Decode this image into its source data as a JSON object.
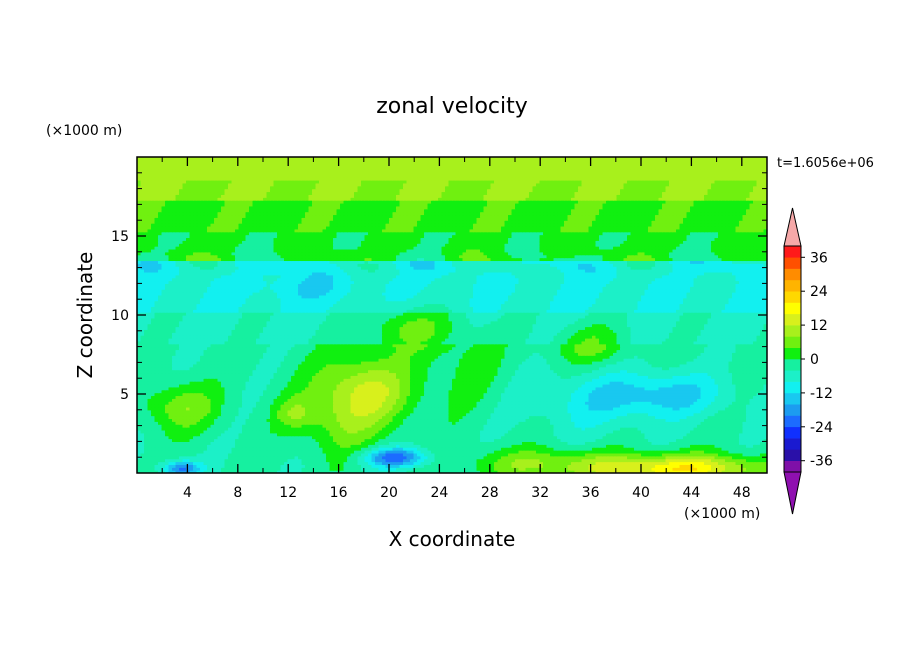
{
  "chart_data": {
    "type": "heatmap",
    "title": "zonal velocity",
    "xlabel": "X coordinate",
    "ylabel": "Z coordinate",
    "x_unit": "(×1000 m)",
    "y_unit": "(×1000 m)",
    "time_label": "t=1.6056e+06",
    "xlim": [
      0,
      50
    ],
    "ylim": [
      0,
      20
    ],
    "x_ticks": [
      4,
      8,
      12,
      16,
      20,
      24,
      28,
      32,
      36,
      40,
      44,
      48
    ],
    "y_ticks": [
      5,
      10,
      15
    ],
    "colorbar": {
      "levels": [
        -40,
        -36,
        -32,
        -28,
        -24,
        -20,
        -16,
        -12,
        -8,
        -4,
        0,
        4,
        8,
        12,
        16,
        20,
        24,
        28,
        32,
        36,
        40
      ],
      "tick_labels": [
        "36",
        "24",
        "12",
        "0",
        "-12",
        "-24",
        "-36"
      ],
      "colors": [
        "#7f10a8",
        "#2a10a8",
        "#1a1ad0",
        "#1030ff",
        "#1c6cff",
        "#1c9cf0",
        "#19c8f0",
        "#12f0f0",
        "#1cf0c8",
        "#16f0a0",
        "#10f010",
        "#70f010",
        "#a8f01c",
        "#d8f01c",
        "#ffff00",
        "#ffd800",
        "#ffb400",
        "#ff8c00",
        "#ff5000",
        "#ff1a1a"
      ],
      "under_color": "#8f10b0",
      "over_color": "#f6a8a8"
    },
    "field": {
      "description_levels_by_z_km": [
        {
          "z": [
            18.5,
            20
          ],
          "value": 10
        },
        {
          "z": [
            15.5,
            18.5
          ],
          "value": 6
        },
        {
          "z": [
            13.5,
            15.5
          ],
          "value": 2
        },
        {
          "z": [
            10,
            13.5
          ],
          "value": -8
        },
        {
          "z": [
            6,
            10
          ],
          "value": -4
        },
        {
          "z": [
            0,
            6
          ],
          "value": 0
        }
      ]
    }
  }
}
